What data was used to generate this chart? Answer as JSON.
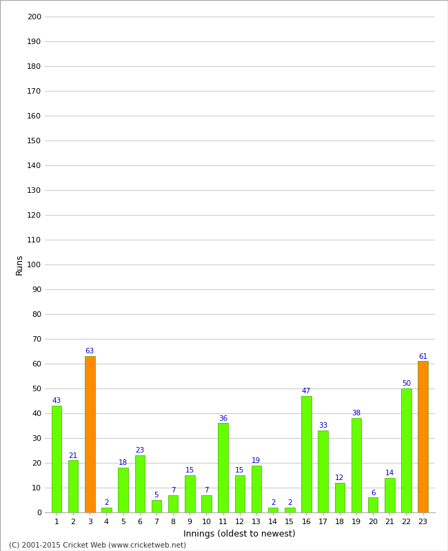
{
  "innings": [
    1,
    2,
    3,
    4,
    5,
    6,
    7,
    8,
    9,
    10,
    11,
    12,
    13,
    14,
    15,
    16,
    17,
    18,
    19,
    20,
    21,
    22,
    23
  ],
  "runs": [
    43,
    21,
    63,
    2,
    18,
    23,
    5,
    7,
    15,
    7,
    36,
    15,
    19,
    2,
    2,
    47,
    33,
    12,
    38,
    6,
    14,
    50,
    61
  ],
  "bar_colors": [
    "#66ff00",
    "#66ff00",
    "#ff8c00",
    "#66ff00",
    "#66ff00",
    "#66ff00",
    "#66ff00",
    "#66ff00",
    "#66ff00",
    "#66ff00",
    "#66ff00",
    "#66ff00",
    "#66ff00",
    "#66ff00",
    "#66ff00",
    "#66ff00",
    "#66ff00",
    "#66ff00",
    "#66ff00",
    "#66ff00",
    "#66ff00",
    "#66ff00",
    "#ff8c00"
  ],
  "label_color": "#0000cc",
  "xlabel": "Innings (oldest to newest)",
  "ylabel": "Runs",
  "ylim": [
    0,
    200
  ],
  "yticks": [
    0,
    10,
    20,
    30,
    40,
    50,
    60,
    70,
    80,
    90,
    100,
    110,
    120,
    130,
    140,
    150,
    160,
    170,
    180,
    190,
    200
  ],
  "background_color": "#ffffff",
  "outer_background": "#f0f0f0",
  "grid_color": "#cccccc",
  "footer": "(C) 2001-2015 Cricket Web (www.cricketweb.net)",
  "bar_width": 0.6
}
